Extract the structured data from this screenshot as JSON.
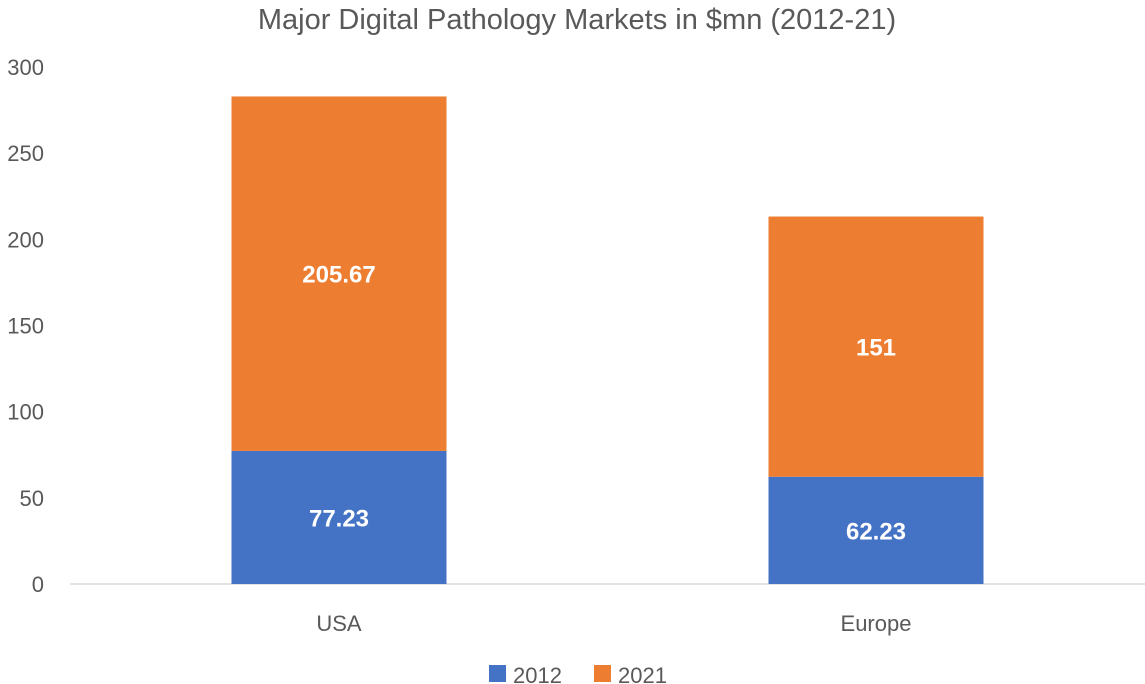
{
  "chart_data": {
    "type": "bar",
    "stacked": true,
    "title": "Major Digital Pathology Markets in $mn (2012-21)",
    "categories": [
      "USA",
      "Europe"
    ],
    "series": [
      {
        "name": "2012",
        "values": [
          77.23,
          62.23
        ],
        "labels": [
          "77.23",
          "62.23"
        ],
        "color": "#4472C4"
      },
      {
        "name": "2021",
        "values": [
          205.67,
          151
        ],
        "labels": [
          "205.67",
          "151"
        ],
        "color": "#ED7D31"
      }
    ],
    "ylim": [
      0,
      300
    ],
    "yticks": [
      "0",
      "50",
      "100",
      "150",
      "200",
      "250",
      "300"
    ],
    "grid": false,
    "legend_position": "bottom",
    "xlabel": "",
    "ylabel": ""
  }
}
